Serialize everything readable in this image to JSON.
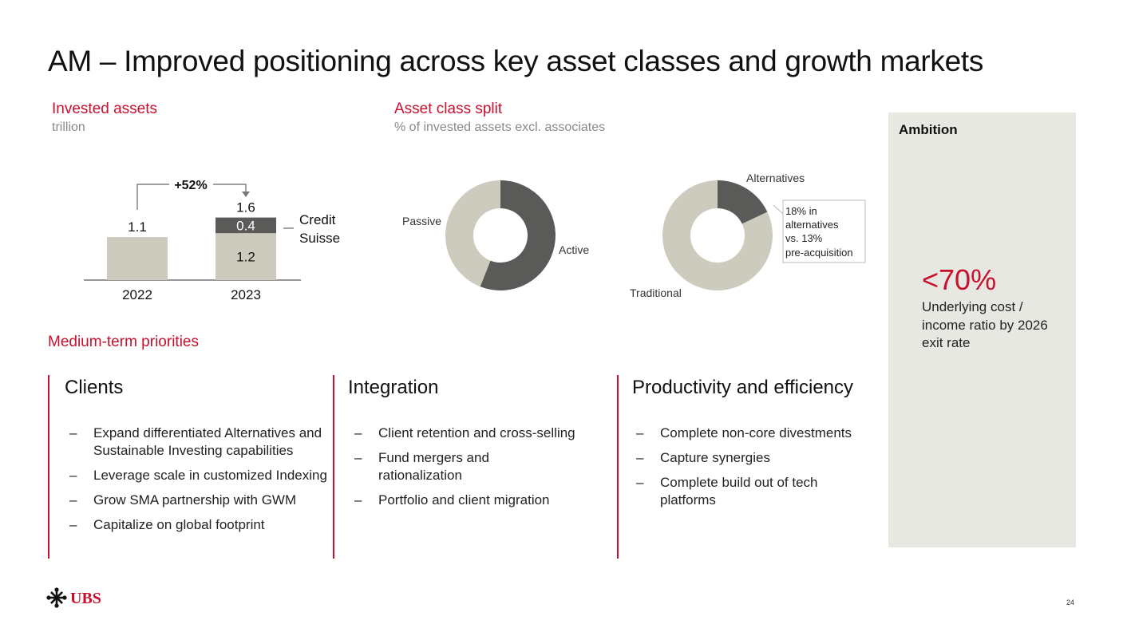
{
  "title": "AM – Improved positioning across key asset classes and growth markets",
  "invested_assets": {
    "heading": "Invested assets",
    "unit": "trillion",
    "growth_label": "+52%",
    "legend_label_line1": "Credit",
    "legend_label_line2": "Suisse"
  },
  "asset_class_split": {
    "heading": "Asset class split",
    "subheading": "% of invested assets excl. associates",
    "callout_line1": "18% in",
    "callout_line2": "alternatives",
    "callout_line3": "vs. 13%",
    "callout_line4": "pre-acquisition"
  },
  "ambition": {
    "label": "Ambition",
    "value": "<70%",
    "description": "Underlying cost / income ratio by 2026 exit rate"
  },
  "priorities": {
    "heading": "Medium-term priorities",
    "dash": "–",
    "columns": [
      {
        "title": "Clients",
        "items": [
          "Expand differentiated Alternatives and Sustainable Investing capabilities",
          "Leverage scale in customized Indexing",
          "Grow SMA partnership with GWM",
          "Capitalize on global footprint"
        ]
      },
      {
        "title": "Integration",
        "items": [
          "Client retention and cross-selling",
          "Fund mergers and rationalization",
          "Portfolio and client migration"
        ]
      },
      {
        "title": "Productivity and efficiency",
        "items": [
          "Complete non-core divestments",
          "Capture synergies",
          "Complete build out of tech platforms"
        ]
      }
    ]
  },
  "footer": {
    "logo_text": "UBS",
    "page_number": "24"
  },
  "colors": {
    "accent_red": "#c8102e",
    "dark_gray": "#5a5a58",
    "light_beige": "#cdcbbd",
    "panel": "#e8e8e2"
  },
  "chart_data": [
    {
      "type": "bar",
      "stacked": true,
      "categories": [
        "2022",
        "2023"
      ],
      "series": [
        {
          "values": [
            1.1,
            1.2
          ],
          "color": "#cdcbbd"
        },
        {
          "name": "Credit Suisse",
          "values": [
            0,
            0.4
          ],
          "color": "#5a5a58"
        }
      ],
      "totals": [
        1.1,
        1.6
      ],
      "data_labels": {
        "totals": [
          "1.1",
          "1.6"
        ],
        "segments_2023": [
          "1.2",
          "0.4"
        ]
      },
      "annotation": "+52%",
      "ylim": [
        0,
        1.7
      ]
    },
    {
      "type": "pie",
      "donut": true,
      "labels": [
        "Active",
        "Passive"
      ],
      "values": [
        56,
        44
      ],
      "colors": [
        "#5a5a58",
        "#cdcbbd"
      ]
    },
    {
      "type": "pie",
      "donut": true,
      "labels": [
        "Alternatives",
        "Traditional"
      ],
      "values": [
        18,
        82
      ],
      "colors": [
        "#5a5a58",
        "#cdcbbd"
      ]
    }
  ]
}
